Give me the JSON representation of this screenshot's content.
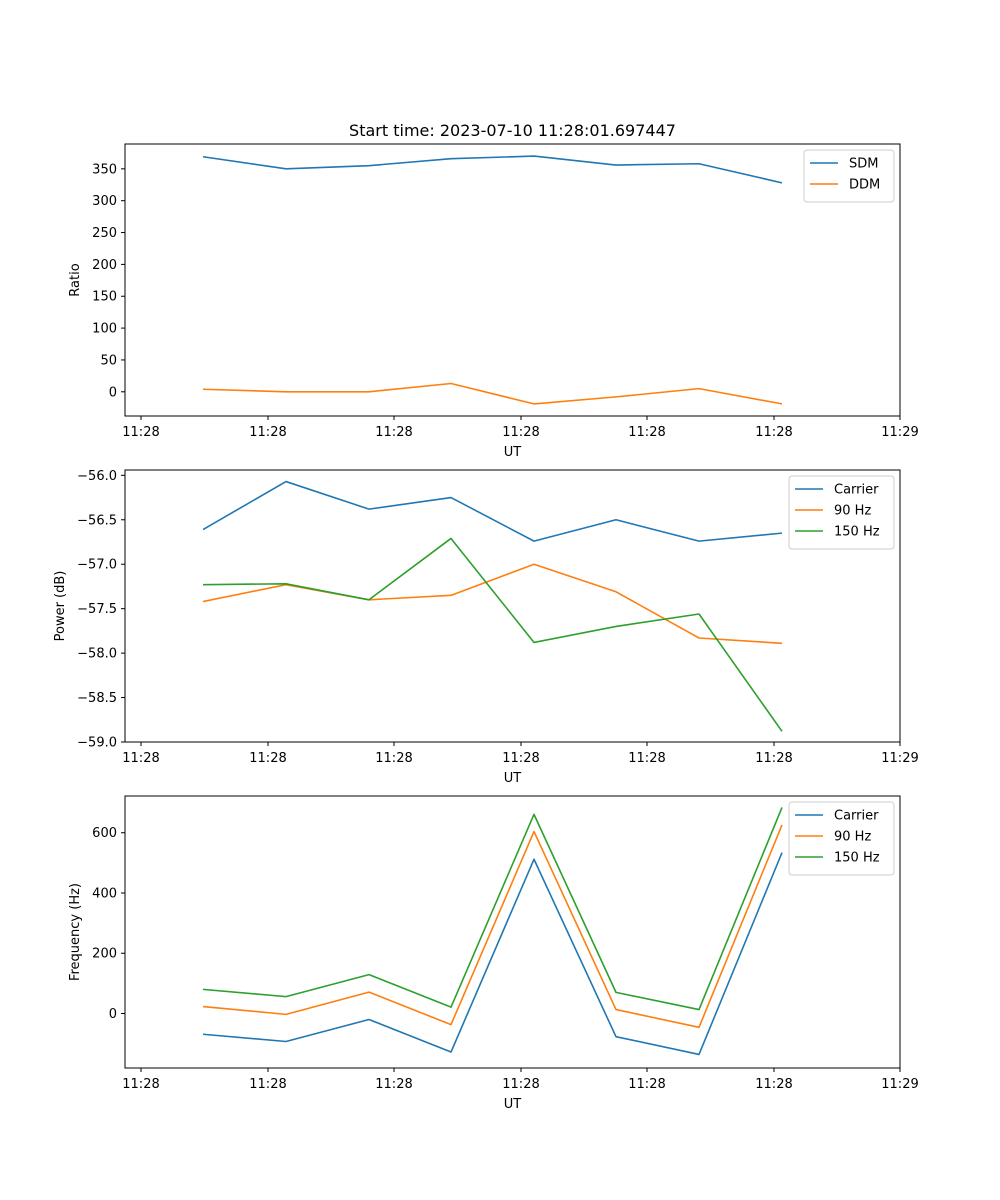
{
  "chart_data": [
    {
      "type": "line",
      "title": "Start time: 2023-07-10 11:28:01.697447",
      "xlabel": "UT",
      "ylabel": "Ratio",
      "x_tick_labels": [
        "11:28",
        "11:28",
        "11:28",
        "11:28",
        "11:28",
        "11:28",
        "11:28"
      ],
      "x_tick_label_last": "11:29",
      "y_ticks": [
        0,
        50,
        100,
        150,
        200,
        250,
        300,
        350
      ],
      "ylim": [
        -38,
        389
      ],
      "series": [
        {
          "name": "SDM",
          "color": "#1f77b4",
          "values": [
            369,
            350,
            355,
            366,
            370,
            356,
            358,
            328
          ]
        },
        {
          "name": "DDM",
          "color": "#ff7f0e",
          "values": [
            4,
            0,
            0,
            13,
            -19,
            -8,
            5,
            -19
          ]
        }
      ],
      "legend_position": "top-right"
    },
    {
      "type": "line",
      "title": "",
      "xlabel": "UT",
      "ylabel": "Power (dB)",
      "x_tick_labels": [
        "11:28",
        "11:28",
        "11:28",
        "11:28",
        "11:28",
        "11:28",
        "11:28"
      ],
      "x_tick_label_last": "11:29",
      "y_ticks": [
        -59.0,
        -58.5,
        -58.0,
        -57.5,
        -57.0,
        -56.5,
        -56.0
      ],
      "y_tick_labels": [
        "−59.0",
        "−58.5",
        "−58.0",
        "−57.5",
        "−57.0",
        "−56.5",
        "−56.0"
      ],
      "ylim": [
        -59.0,
        -55.94
      ],
      "series": [
        {
          "name": "Carrier",
          "color": "#1f77b4",
          "values": [
            -56.61,
            -56.07,
            -56.38,
            -56.25,
            -56.74,
            -56.5,
            -56.74,
            -56.65
          ]
        },
        {
          "name": "90 Hz",
          "color": "#ff7f0e",
          "values": [
            -57.42,
            -57.23,
            -57.4,
            -57.35,
            -57.0,
            -57.31,
            -57.83,
            -57.89
          ]
        },
        {
          "name": "150 Hz",
          "color": "#2ca02c",
          "values": [
            -57.23,
            -57.22,
            -57.4,
            -56.71,
            -57.88,
            -57.7,
            -57.56,
            -58.88
          ]
        }
      ],
      "legend_position": "top-right"
    },
    {
      "type": "line",
      "title": "",
      "xlabel": "UT",
      "ylabel": "Frequency (Hz)",
      "x_tick_labels": [
        "11:28",
        "11:28",
        "11:28",
        "11:28",
        "11:28",
        "11:28",
        "11:28"
      ],
      "x_tick_label_last": "11:29",
      "y_ticks": [
        0,
        200,
        400,
        600
      ],
      "ylim": [
        -181,
        722
      ],
      "series": [
        {
          "name": "Carrier",
          "color": "#1f77b4",
          "values": [
            -69,
            -93,
            -20,
            -128,
            512,
            -77,
            -136,
            534
          ]
        },
        {
          "name": "90 Hz",
          "color": "#ff7f0e",
          "values": [
            23,
            -3,
            71,
            -37,
            604,
            13,
            -46,
            626
          ]
        },
        {
          "name": "150 Hz",
          "color": "#2ca02c",
          "values": [
            80,
            56,
            129,
            21,
            661,
            70,
            13,
            684
          ]
        }
      ],
      "legend_position": "top-right"
    }
  ]
}
